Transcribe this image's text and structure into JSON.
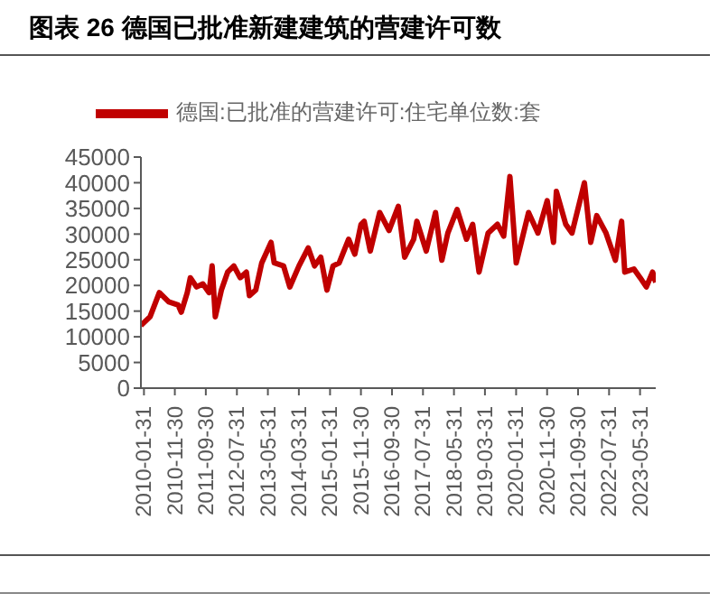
{
  "chart_data": {
    "type": "line",
    "title": "图表 26 德国已批准新建建筑的营建许可数",
    "x": [
      "2010-01",
      "2010-04",
      "2010-07",
      "2010-10",
      "2011-01",
      "2011-02",
      "2011-04",
      "2011-05",
      "2011-07",
      "2011-09",
      "2011-11",
      "2011-12",
      "2012-01",
      "2012-03",
      "2012-05",
      "2012-07",
      "2012-09",
      "2012-11",
      "2012-12",
      "2013-02",
      "2013-04",
      "2013-07",
      "2013-08",
      "2013-11",
      "2014-01",
      "2014-04",
      "2014-07",
      "2014-09",
      "2014-11",
      "2015-01",
      "2015-03",
      "2015-05",
      "2015-08",
      "2015-10",
      "2015-12",
      "2016-01",
      "2016-03",
      "2016-06",
      "2016-09",
      "2016-12",
      "2017-02",
      "2017-05",
      "2017-06",
      "2017-09",
      "2017-12",
      "2018-02",
      "2018-04",
      "2018-07",
      "2018-10",
      "2018-12",
      "2019-02",
      "2019-05",
      "2019-08",
      "2019-10",
      "2019-12",
      "2020-02",
      "2020-06",
      "2020-09",
      "2020-12",
      "2021-02",
      "2021-03",
      "2021-06",
      "2021-08",
      "2021-12",
      "2022-02",
      "2022-04",
      "2022-07",
      "2022-10",
      "2022-12",
      "2023-01",
      "2023-04",
      "2023-06",
      "2023-08",
      "2023-10",
      "2023-11"
    ],
    "series": [
      {
        "name": "德国:已批准的营建许可:住宅单位数:套",
        "color": "#c00000",
        "values": [
          12200,
          13900,
          18600,
          16800,
          16200,
          14800,
          18600,
          21500,
          19700,
          20300,
          18600,
          23800,
          13900,
          19100,
          22600,
          23800,
          21500,
          22600,
          18000,
          19100,
          24400,
          28400,
          24400,
          23800,
          19700,
          23800,
          27300,
          23800,
          25500,
          19100,
          23800,
          24400,
          29000,
          26100,
          31900,
          32500,
          26700,
          34200,
          30700,
          35400,
          25500,
          29000,
          32500,
          26700,
          34200,
          24900,
          30200,
          34800,
          29000,
          31900,
          22600,
          30200,
          31900,
          29600,
          41200,
          24400,
          34200,
          30200,
          36500,
          28400,
          38300,
          31900,
          30200,
          40000,
          28400,
          33600,
          30200,
          24900,
          32500,
          22600,
          23200,
          21500,
          19700,
          22600,
          20600
        ]
      }
    ],
    "xlim": [
      "2010-01",
      "2023-11"
    ],
    "xticks": [
      "2010-01-31",
      "2010-11-30",
      "2011-09-30",
      "2012-07-31",
      "2013-05-31",
      "2014-03-31",
      "2015-01-31",
      "2015-11-30",
      "2016-09-30",
      "2017-07-31",
      "2018-05-31",
      "2019-03-31",
      "2020-01-31",
      "2020-11-30",
      "2021-09-30",
      "2022-07-31",
      "2023-05-31"
    ],
    "ylim": [
      0,
      45000
    ],
    "yticks": [
      0,
      5000,
      10000,
      15000,
      20000,
      25000,
      30000,
      35000,
      40000,
      45000
    ],
    "legend": "top",
    "grid": false,
    "marker": "none",
    "line_style": "solid"
  }
}
